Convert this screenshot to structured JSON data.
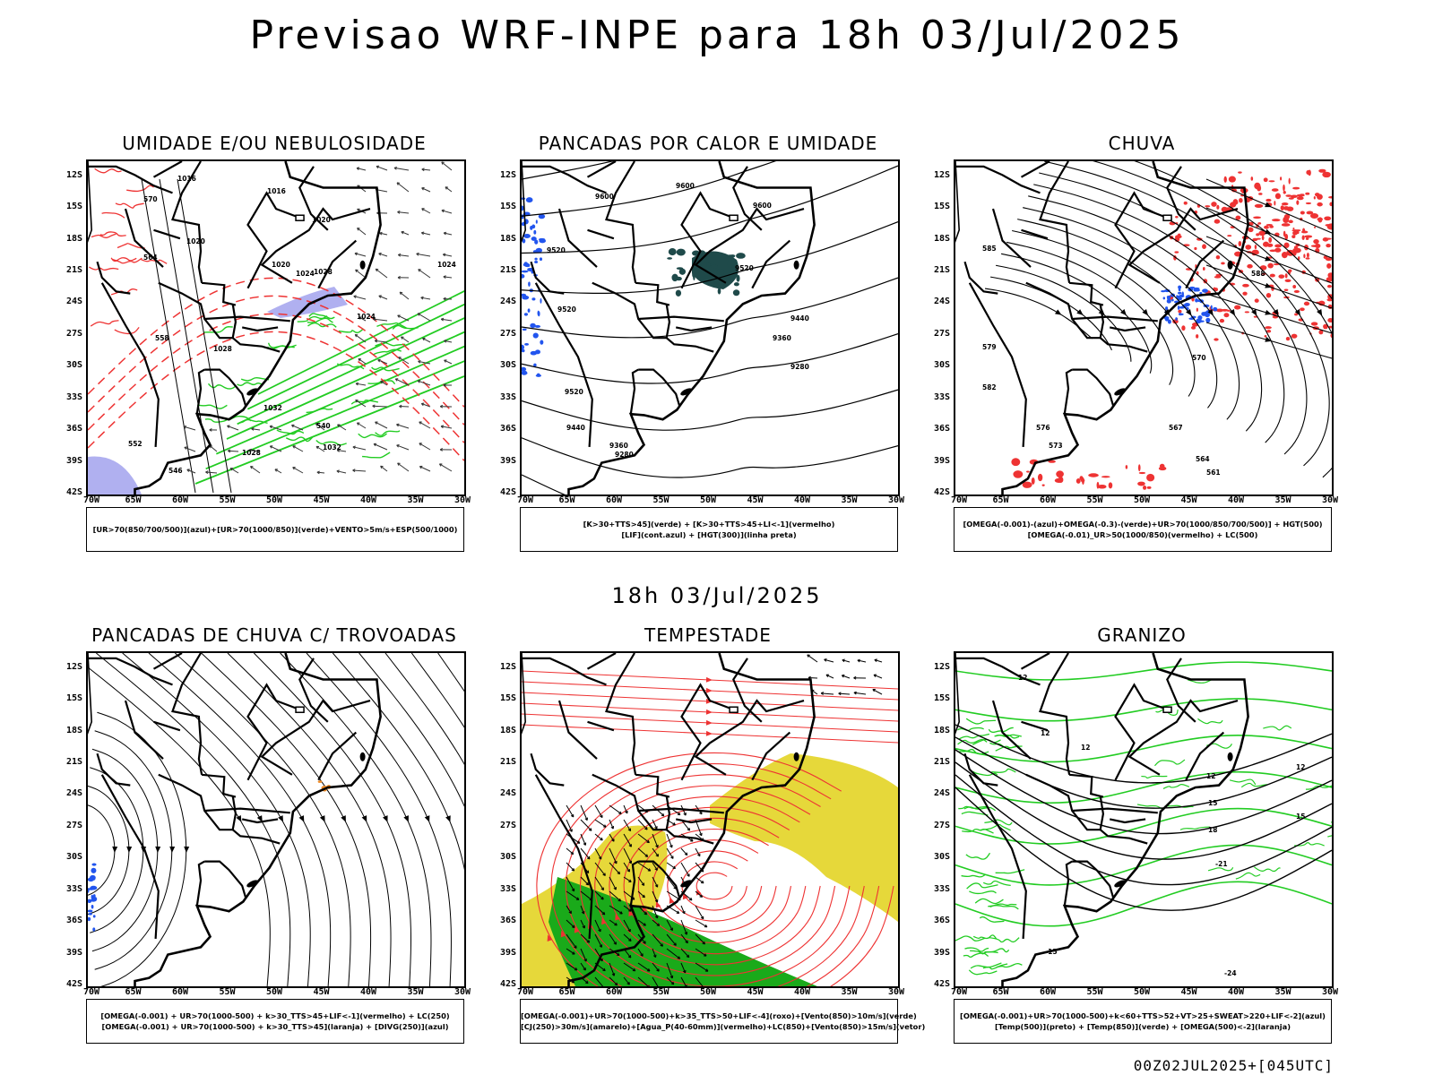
{
  "title": "Previsao WRF-INPE  para 18h 03/Jul/2025",
  "mid_title": "18h 03/Jul/2025",
  "footer": "00Z02JUL2025+[045UTC]",
  "lat_labels": [
    "12S",
    "15S",
    "18S",
    "21S",
    "24S",
    "27S",
    "30S",
    "33S",
    "36S",
    "39S",
    "42S"
  ],
  "lon_labels": [
    "70W",
    "65W",
    "60W",
    "55W",
    "50W",
    "45W",
    "40W",
    "35W",
    "30W"
  ],
  "colors": {
    "blue_humidity": "#b0b0f0",
    "green": "#22cc22",
    "red": "#ee3333",
    "blue": "#2255ee",
    "dark_teal": "#1f4a4a",
    "yellow": "#e6d83a",
    "dark_green": "#1aaa1a",
    "orange": "#ee8822"
  },
  "panels": [
    {
      "title": "UMIDADE E/OU NEBULOSIDADE",
      "legend": [
        "[UR>70(850/700/500)](azul)+[UR>70(1000/850)](verde)+VENTO>5m/s+ESP(500/1000)"
      ],
      "contour_labels": [
        "1016",
        "1016",
        "1020",
        "1020",
        "1020",
        "1024",
        "1028",
        "1024",
        "1028",
        "1024",
        "1028",
        "1032",
        "1032",
        "1028",
        "570",
        "564",
        "558",
        "552",
        "546",
        "540"
      ]
    },
    {
      "title": "PANCADAS POR CALOR E UMIDADE",
      "legend": [
        "[K>30+TTS>45](verde) + [K>30+TTS>45+LI<-1](vermelho)",
        "[LIF](cont.azul) + [HGT(300)](linha preta)"
      ],
      "contour_labels": [
        "9600",
        "9600",
        "9600",
        "9520",
        "9520",
        "9520",
        "9520",
        "9440",
        "9440",
        "9360",
        "9360",
        "9280",
        "9280"
      ]
    },
    {
      "title": "CHUVA",
      "legend": [
        "[OMEGA(-0.001)-(azul)+OMEGA(-0.3)-(verde)+UR>70(1000/850/700/500)] + HGT(500)",
        "[OMEGA(-0.01)_UR>50(1000/850)(vermelho) + LC(500)"
      ],
      "contour_labels": [
        "585",
        "579",
        "576",
        "573",
        "570",
        "567",
        "564",
        "561",
        "582",
        "588"
      ]
    },
    {
      "title": "PANCADAS DE CHUVA C/ TROVOADAS",
      "legend": [
        "[OMEGA(-0.001) + UR>70(1000-500) + k>30_TTS>45+LIF<-1](vermelho) + LC(250)",
        "[OMEGA(-0.001) + UR>70(1000-500) + k>30_TTS>45](laranja) + [DIVG(250)](azul)"
      ],
      "contour_labels": []
    },
    {
      "title": "TEMPESTADE",
      "legend": [
        "[OMEGA(-0.001)+UR>70(1000-500)+k>35_TTS>50+LIF<-4](roxo)+[Vento(850)>10m/s](verde)",
        "[CJ(250)>30m/s](amarelo)+[Agua_P(40-60mm)](vermelho)+LC(850)+[Vento(850)>15m/s](vetor)"
      ],
      "contour_labels": []
    },
    {
      "title": "GRANIZO",
      "legend": [
        "[OMEGA(-0.001)+UR>70(1000-500)+k<60+TTS>52+VT>25+SWEAT>220+LIF<-2](azul)",
        "[Temp(500)](preto) + [Temp(850)](verde) + [OMEGA(500)<-2](laranja)"
      ],
      "contour_labels": [
        "12",
        "12",
        "12",
        "12",
        "15",
        "18",
        "-21",
        "-15",
        "-24",
        "15",
        "12"
      ]
    }
  ]
}
